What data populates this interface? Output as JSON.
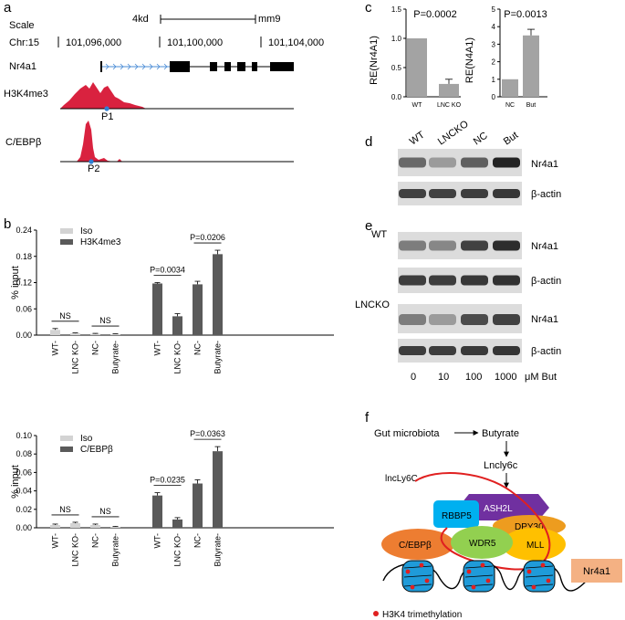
{
  "panel_labels": {
    "a": "a",
    "b": "b",
    "c": "c",
    "d": "d",
    "e": "e",
    "f": "f"
  },
  "panel_a": {
    "scale_label": "Scale",
    "scale_value": "4kd",
    "assembly": "mm9",
    "chr_label": "Chr:15",
    "coords": [
      "101,096,000",
      "101,100,000",
      "101,104,000"
    ],
    "gene": "Nr4a1",
    "track1": "H3K4me3",
    "track2": "C/EBPβ",
    "peak1": "P1",
    "peak2": "P2",
    "peak_color": "#d9223f",
    "marker_color": "#2f7fd4"
  },
  "chart_data": [
    {
      "type": "bar",
      "panel": "b-top",
      "categories": [
        "WT",
        "LNC KO",
        "NC",
        "Butyrate"
      ],
      "ylabel": "% input",
      "ylim": [
        0,
        0.24
      ],
      "yticks": [
        "0.00",
        "0.06",
        "0.12",
        "0.18",
        "0.24"
      ],
      "series": [
        {
          "name": "Iso",
          "color": "#d3d3d3",
          "values": [
            0.012,
            0.004,
            0.003,
            0.002
          ],
          "errors": [
            0.003,
            0.001,
            0.001,
            0.001
          ]
        },
        {
          "name": "H3K4me3",
          "color": "#5a5a5a",
          "values": [
            0.118,
            0.043,
            0.116,
            0.185
          ],
          "errors": [
            0.002,
            0.006,
            0.007,
            0.009
          ]
        }
      ],
      "annotations": [
        {
          "text": "NS",
          "between": [
            "WT",
            "LNC KO"
          ],
          "series": "Iso"
        },
        {
          "text": "NS",
          "between": [
            "NC",
            "Butyrate"
          ],
          "series": "Iso"
        },
        {
          "text": "P=0.0034",
          "between": [
            "WT",
            "LNC KO"
          ],
          "series": "H3K4me3"
        },
        {
          "text": "P=0.0206",
          "between": [
            "NC",
            "Butyrate"
          ],
          "series": "H3K4me3"
        }
      ]
    },
    {
      "type": "bar",
      "panel": "b-bottom",
      "categories": [
        "WT",
        "LNC KO",
        "NC",
        "Butyrate"
      ],
      "ylabel": "% input",
      "ylim": [
        0,
        0.1
      ],
      "yticks": [
        "0.00",
        "0.02",
        "0.04",
        "0.06",
        "0.08",
        "0.10"
      ],
      "series": [
        {
          "name": "Iso",
          "color": "#d3d3d3",
          "values": [
            0.003,
            0.005,
            0.003,
            0.001
          ],
          "errors": [
            0.001,
            0.001,
            0.001,
            0.0005
          ]
        },
        {
          "name": "C/EBPβ",
          "color": "#5a5a5a",
          "values": [
            0.035,
            0.009,
            0.048,
            0.083
          ],
          "errors": [
            0.003,
            0.002,
            0.004,
            0.005
          ]
        }
      ],
      "annotations": [
        {
          "text": "NS",
          "between": [
            "WT",
            "LNC KO"
          ],
          "series": "Iso"
        },
        {
          "text": "NS",
          "between": [
            "NC",
            "Butyrate"
          ],
          "series": "Iso"
        },
        {
          "text": "P=0.0235",
          "between": [
            "WT",
            "LNC KO"
          ],
          "series": "C/EBPβ"
        },
        {
          "text": "P=0.0363",
          "between": [
            "NC",
            "Butyrate"
          ],
          "series": "C/EBPβ"
        }
      ]
    },
    {
      "type": "bar",
      "panel": "c-left",
      "categories": [
        "WT",
        "LNC KO"
      ],
      "ylabel": "RE(Nr4A1)",
      "ylim": [
        0,
        1.5
      ],
      "yticks": [
        "0.0",
        "0.5",
        "1.0",
        "1.5"
      ],
      "series": [
        {
          "name": "",
          "color": "#a3a3a3",
          "values": [
            1.0,
            0.22
          ],
          "errors": [
            0,
            0.08
          ]
        }
      ],
      "annotations": [
        {
          "text": "P=0.0002"
        }
      ]
    },
    {
      "type": "bar",
      "panel": "c-right",
      "categories": [
        "NC",
        "But"
      ],
      "ylabel": "RE(N4A1)",
      "ylim": [
        0,
        5
      ],
      "yticks": [
        "0",
        "1",
        "2",
        "3",
        "4",
        "5"
      ],
      "series": [
        {
          "name": "",
          "color": "#a3a3a3",
          "values": [
            1.0,
            3.5
          ],
          "errors": [
            0,
            0.35
          ]
        }
      ],
      "annotations": [
        {
          "text": "P=0.0013"
        }
      ]
    }
  ],
  "panel_d": {
    "lanes": [
      "WT",
      "LNCKO",
      "NC",
      "But"
    ],
    "rows": [
      "Nr4a1",
      "β-actin"
    ],
    "band_intensity": {
      "Nr4a1": [
        0.6,
        0.35,
        0.65,
        0.95
      ],
      "β-actin": [
        0.8,
        0.8,
        0.82,
        0.85
      ]
    }
  },
  "panel_e": {
    "group1": "WT",
    "group2": "LNCKO",
    "rows": [
      "Nr4a1",
      "β-actin",
      "Nr4a1",
      "β-actin"
    ],
    "doses": [
      "0",
      "10",
      "100",
      "1000"
    ],
    "dose_unit": "μM But",
    "band_intensity": {
      "wt_nr4a1": [
        0.5,
        0.45,
        0.8,
        0.9
      ],
      "wt_actin": [
        0.82,
        0.82,
        0.85,
        0.88
      ],
      "ko_nr4a1": [
        0.5,
        0.35,
        0.75,
        0.8
      ],
      "ko_actin": [
        0.82,
        0.82,
        0.84,
        0.86
      ]
    }
  },
  "panel_f": {
    "source": "Gut microbiota",
    "metabolite": "Butyrate",
    "lnc": "Lncly6c",
    "lnc_label": "lncLy6C",
    "proteins": [
      "ASH2L",
      "RBBP5",
      "DPY30",
      "C/EBPβ",
      "WDR5",
      "MLL"
    ],
    "target": "Nr4a1",
    "legend": "H3K4 trimethylation",
    "colors": {
      "ASH2L": "#7030a0",
      "RBBP5": "#00b0f0",
      "DPY30": "#ed9c1f",
      "C/EBPβ": "#ed7d31",
      "WDR5": "#92d050",
      "MLL": "#ffc000",
      "target": "#f4b183",
      "nucleosome": "#1f9bd9",
      "mark": "#e02020",
      "lnc": "#e02020"
    }
  }
}
